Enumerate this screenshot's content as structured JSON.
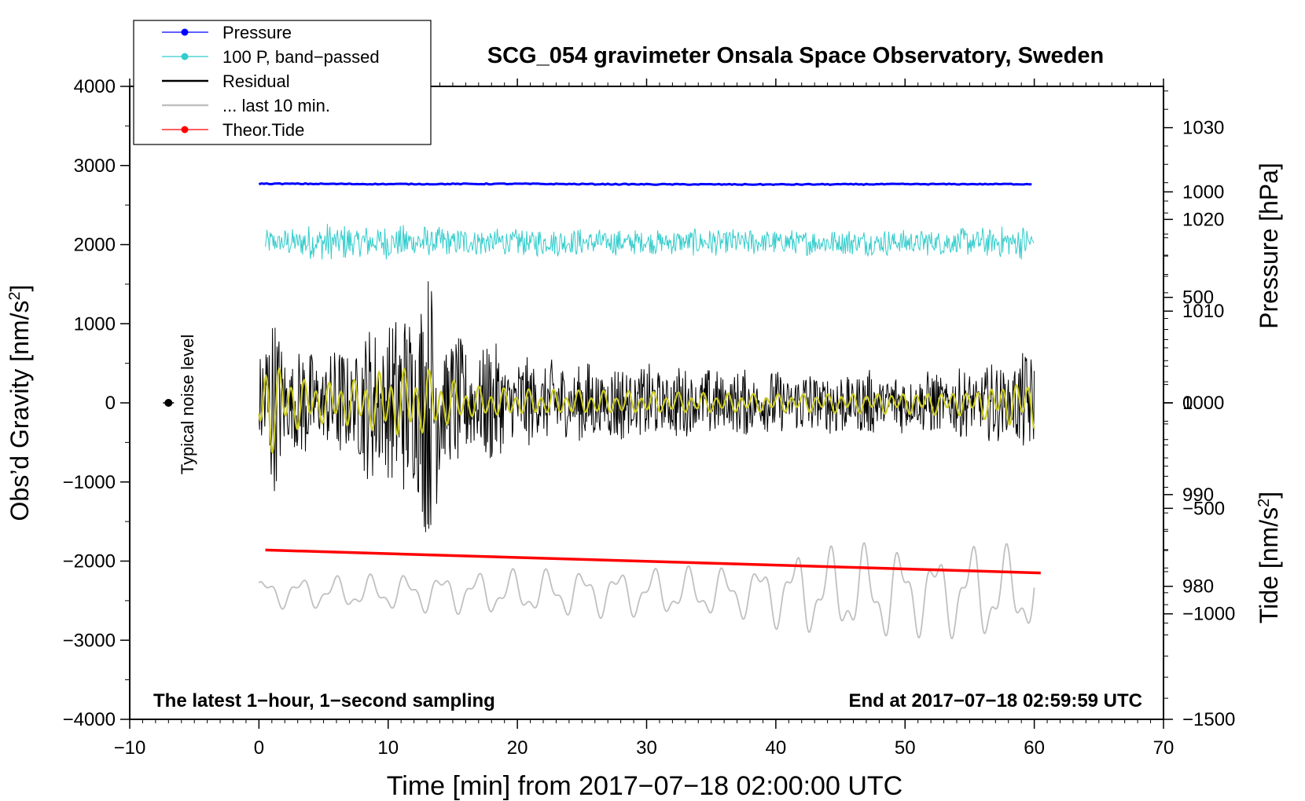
{
  "chart_data": {
    "type": "line",
    "title": "SCG_054 gravimeter Onsala Space Observatory, Sweden",
    "xlabel": "Time [min] from 2017−07−18 02:00:00 UTC",
    "ylabel_left_main": "Obs’d Gravity [nm/s",
    "ylabel_left_sup": "2",
    "ylabel_left_end": "]",
    "ylabel_right_pressure": "Pressure [hPa]",
    "ylabel_right_tide_main": "Tide [nm/s",
    "ylabel_right_tide_sup": "2",
    "ylabel_right_tide_end": "]",
    "xlim": [
      -10,
      70
    ],
    "ylim": [
      -4000,
      4000
    ],
    "pressure_axis": {
      "ylim": [
        965.5,
        1034.5
      ],
      "ticks": [
        980,
        990,
        1000,
        1010,
        1020,
        1030
      ]
    },
    "tide_axis": {
      "ylim": [
        -1500,
        1500
      ],
      "ticks": [
        -1500,
        -1000,
        -500,
        0,
        500,
        1000
      ]
    },
    "x_ticks": [
      -10,
      0,
      10,
      20,
      30,
      40,
      50,
      60,
      70
    ],
    "x_tick_labels": [
      "−10",
      "0",
      "10",
      "20",
      "30",
      "40",
      "50",
      "60",
      "70"
    ],
    "y_ticks": [
      -4000,
      -3000,
      -2000,
      -1000,
      0,
      1000,
      2000,
      3000,
      4000
    ],
    "y_tick_labels": [
      "−4000",
      "−3000",
      "−2000",
      "−1000",
      "0",
      "1000",
      "2000",
      "3000",
      "4000"
    ],
    "pressure_tick_labels": [
      "980",
      "990",
      "1000",
      "1010",
      "1020",
      "1030"
    ],
    "tide_tick_labels": [
      "−1500",
      "−1000",
      "−500",
      "0",
      "500",
      "1000"
    ],
    "legend": {
      "placement": "top-left",
      "entries": [
        {
          "label": "Pressure",
          "color": "#0000ff",
          "marker": true
        },
        {
          "label": "100 P, band−passed",
          "color": "#33cccc",
          "marker": true
        },
        {
          "label": "Residual",
          "color": "#000000",
          "marker": false
        },
        {
          "label": "... last 10 min.",
          "color": "#c0c0c0",
          "marker": false
        },
        {
          "label": "Theor.Tide",
          "color": "#ff0000",
          "marker": true
        }
      ]
    },
    "annotations": {
      "left_note": "The latest 1−hour, 1−second sampling",
      "right_note": "End at 2017−07−18 02:59:59 UTC",
      "noise_label": "Typical noise level",
      "noise_point": {
        "x": -7,
        "y": 0
      }
    },
    "series": [
      {
        "name": "Pressure",
        "color": "#0000ff",
        "x": [
          0,
          10,
          20,
          30,
          40,
          50,
          60
        ],
        "y": [
          2770,
          2765,
          2768,
          2762,
          2760,
          2764,
          2765
        ]
      },
      {
        "name": "100 P, band−passed",
        "color": "#33cccc",
        "x_range": [
          0.5,
          60
        ],
        "center": 2030,
        "amplitude_profile": [
          [
            0,
            150
          ],
          [
            2,
            180
          ],
          [
            5,
            260
          ],
          [
            8,
            220
          ],
          [
            12,
            230
          ],
          [
            15,
            200
          ],
          [
            20,
            190
          ],
          [
            25,
            180
          ],
          [
            30,
            160
          ],
          [
            35,
            180
          ],
          [
            40,
            170
          ],
          [
            45,
            180
          ],
          [
            50,
            170
          ],
          [
            55,
            190
          ],
          [
            60,
            230
          ]
        ]
      },
      {
        "name": "Residual",
        "color": "#000000",
        "x_range": [
          0,
          60
        ],
        "center": 0,
        "amplitude_profile": [
          [
            0,
            1000
          ],
          [
            1,
            1200
          ],
          [
            2,
            800
          ],
          [
            4,
            700
          ],
          [
            6,
            700
          ],
          [
            8,
            900
          ],
          [
            10,
            1300
          ],
          [
            11,
            1100
          ],
          [
            12,
            1700
          ],
          [
            13,
            1800
          ],
          [
            14,
            1300
          ],
          [
            16,
            700
          ],
          [
            17,
            900
          ],
          [
            18,
            800
          ],
          [
            20,
            600
          ],
          [
            25,
            550
          ],
          [
            30,
            500
          ],
          [
            35,
            450
          ],
          [
            40,
            420
          ],
          [
            45,
            450
          ],
          [
            50,
            400
          ],
          [
            55,
            450
          ],
          [
            58,
            550
          ],
          [
            60,
            700
          ]
        ]
      },
      {
        "name": "Residual (smoothed)",
        "color": "#cccc22",
        "x_range": [
          0,
          60
        ],
        "center": 0,
        "amplitude_profile": [
          [
            0,
            500
          ],
          [
            1,
            600
          ],
          [
            2,
            350
          ],
          [
            5,
            250
          ],
          [
            8,
            300
          ],
          [
            10,
            420
          ],
          [
            13,
            400
          ],
          [
            16,
            200
          ],
          [
            20,
            160
          ],
          [
            30,
            130
          ],
          [
            40,
            110
          ],
          [
            50,
            130
          ],
          [
            55,
            150
          ],
          [
            58,
            250
          ],
          [
            60,
            300
          ]
        ]
      },
      {
        "name": "... last 10 min.",
        "color": "#c0c0c0",
        "x_range": [
          0,
          60
        ],
        "center": -2400,
        "amplitude_profile": [
          [
            0,
            180
          ],
          [
            10,
            220
          ],
          [
            20,
            280
          ],
          [
            30,
            300
          ],
          [
            38,
            320
          ],
          [
            42,
            520
          ],
          [
            48,
            600
          ],
          [
            52,
            500
          ],
          [
            56,
            620
          ],
          [
            60,
            500
          ]
        ]
      },
      {
        "name": "Theor.Tide",
        "color": "#ff0000",
        "x": [
          0.5,
          60.5
        ],
        "y": [
          -1860,
          -2150
        ]
      }
    ]
  }
}
